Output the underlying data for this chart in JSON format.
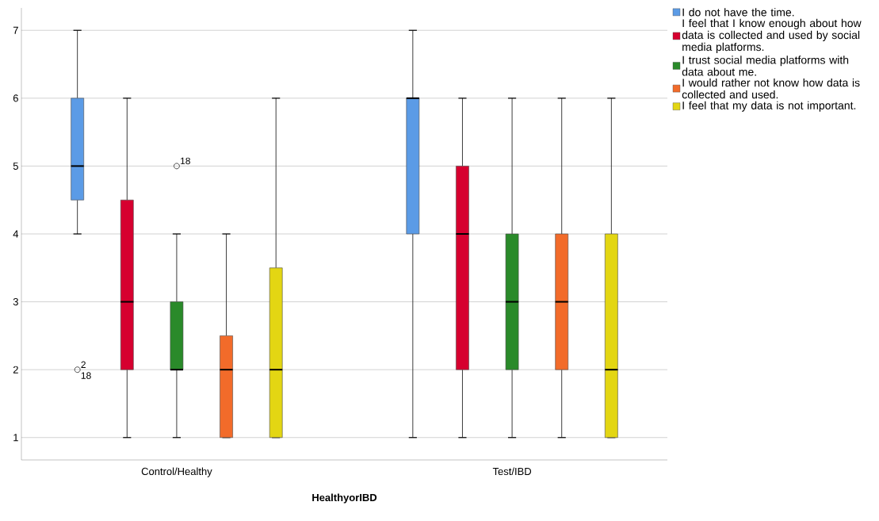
{
  "chart_data": {
    "type": "box",
    "xlabel": "HealthyorIBD",
    "categories": [
      "Control/Healthy",
      "Test/IBD"
    ],
    "ylim": [
      0.67,
      7.33
    ],
    "yticks": [
      1,
      2,
      3,
      4,
      5,
      6,
      7
    ],
    "grid": "y",
    "legend": "top right",
    "series": [
      {
        "name": "I do not have the time.",
        "color": "#5b9be6",
        "boxes": [
          {
            "low": 4,
            "q1": 4.5,
            "median": 5,
            "q3": 6,
            "high": 7,
            "outliers": [
              2
            ]
          },
          {
            "low": 1,
            "q1": 4,
            "median": 6,
            "q3": 6,
            "high": 7
          }
        ]
      },
      {
        "name": "I feel that I know enough about how data is collected and used by social media platforms.",
        "color": "#d6002f",
        "boxes": [
          {
            "low": 1,
            "q1": 2,
            "median": 3,
            "q3": 4.5,
            "high": 6
          },
          {
            "low": 1,
            "q1": 2,
            "median": 4,
            "q3": 5,
            "high": 6
          }
        ]
      },
      {
        "name": "I trust social media platforms with data about me.",
        "color": "#2a8a2a",
        "boxes": [
          {
            "low": 1,
            "q1": 2,
            "median": 2,
            "q3": 3,
            "high": 4,
            "outliers": [
              5
            ]
          },
          {
            "low": 1,
            "q1": 2,
            "median": 3,
            "q3": 4,
            "high": 6
          }
        ]
      },
      {
        "name": "I would rather not know how data is collected and used.",
        "color": "#f26b2a",
        "boxes": [
          {
            "low": 1,
            "q1": 1,
            "median": 2,
            "q3": 2.5,
            "high": 4
          },
          {
            "low": 1,
            "q1": 2,
            "median": 3,
            "q3": 4,
            "high": 6
          }
        ]
      },
      {
        "name": "I feel that my data is not important.",
        "color": "#e3d613",
        "boxes": [
          {
            "low": 1,
            "q1": 1,
            "median": 2,
            "q3": 3.5,
            "high": 6
          },
          {
            "low": 1,
            "q1": 1,
            "median": 2,
            "q3": 4,
            "high": 6
          }
        ]
      }
    ],
    "annotations": [
      "2",
      "18",
      "18"
    ]
  }
}
